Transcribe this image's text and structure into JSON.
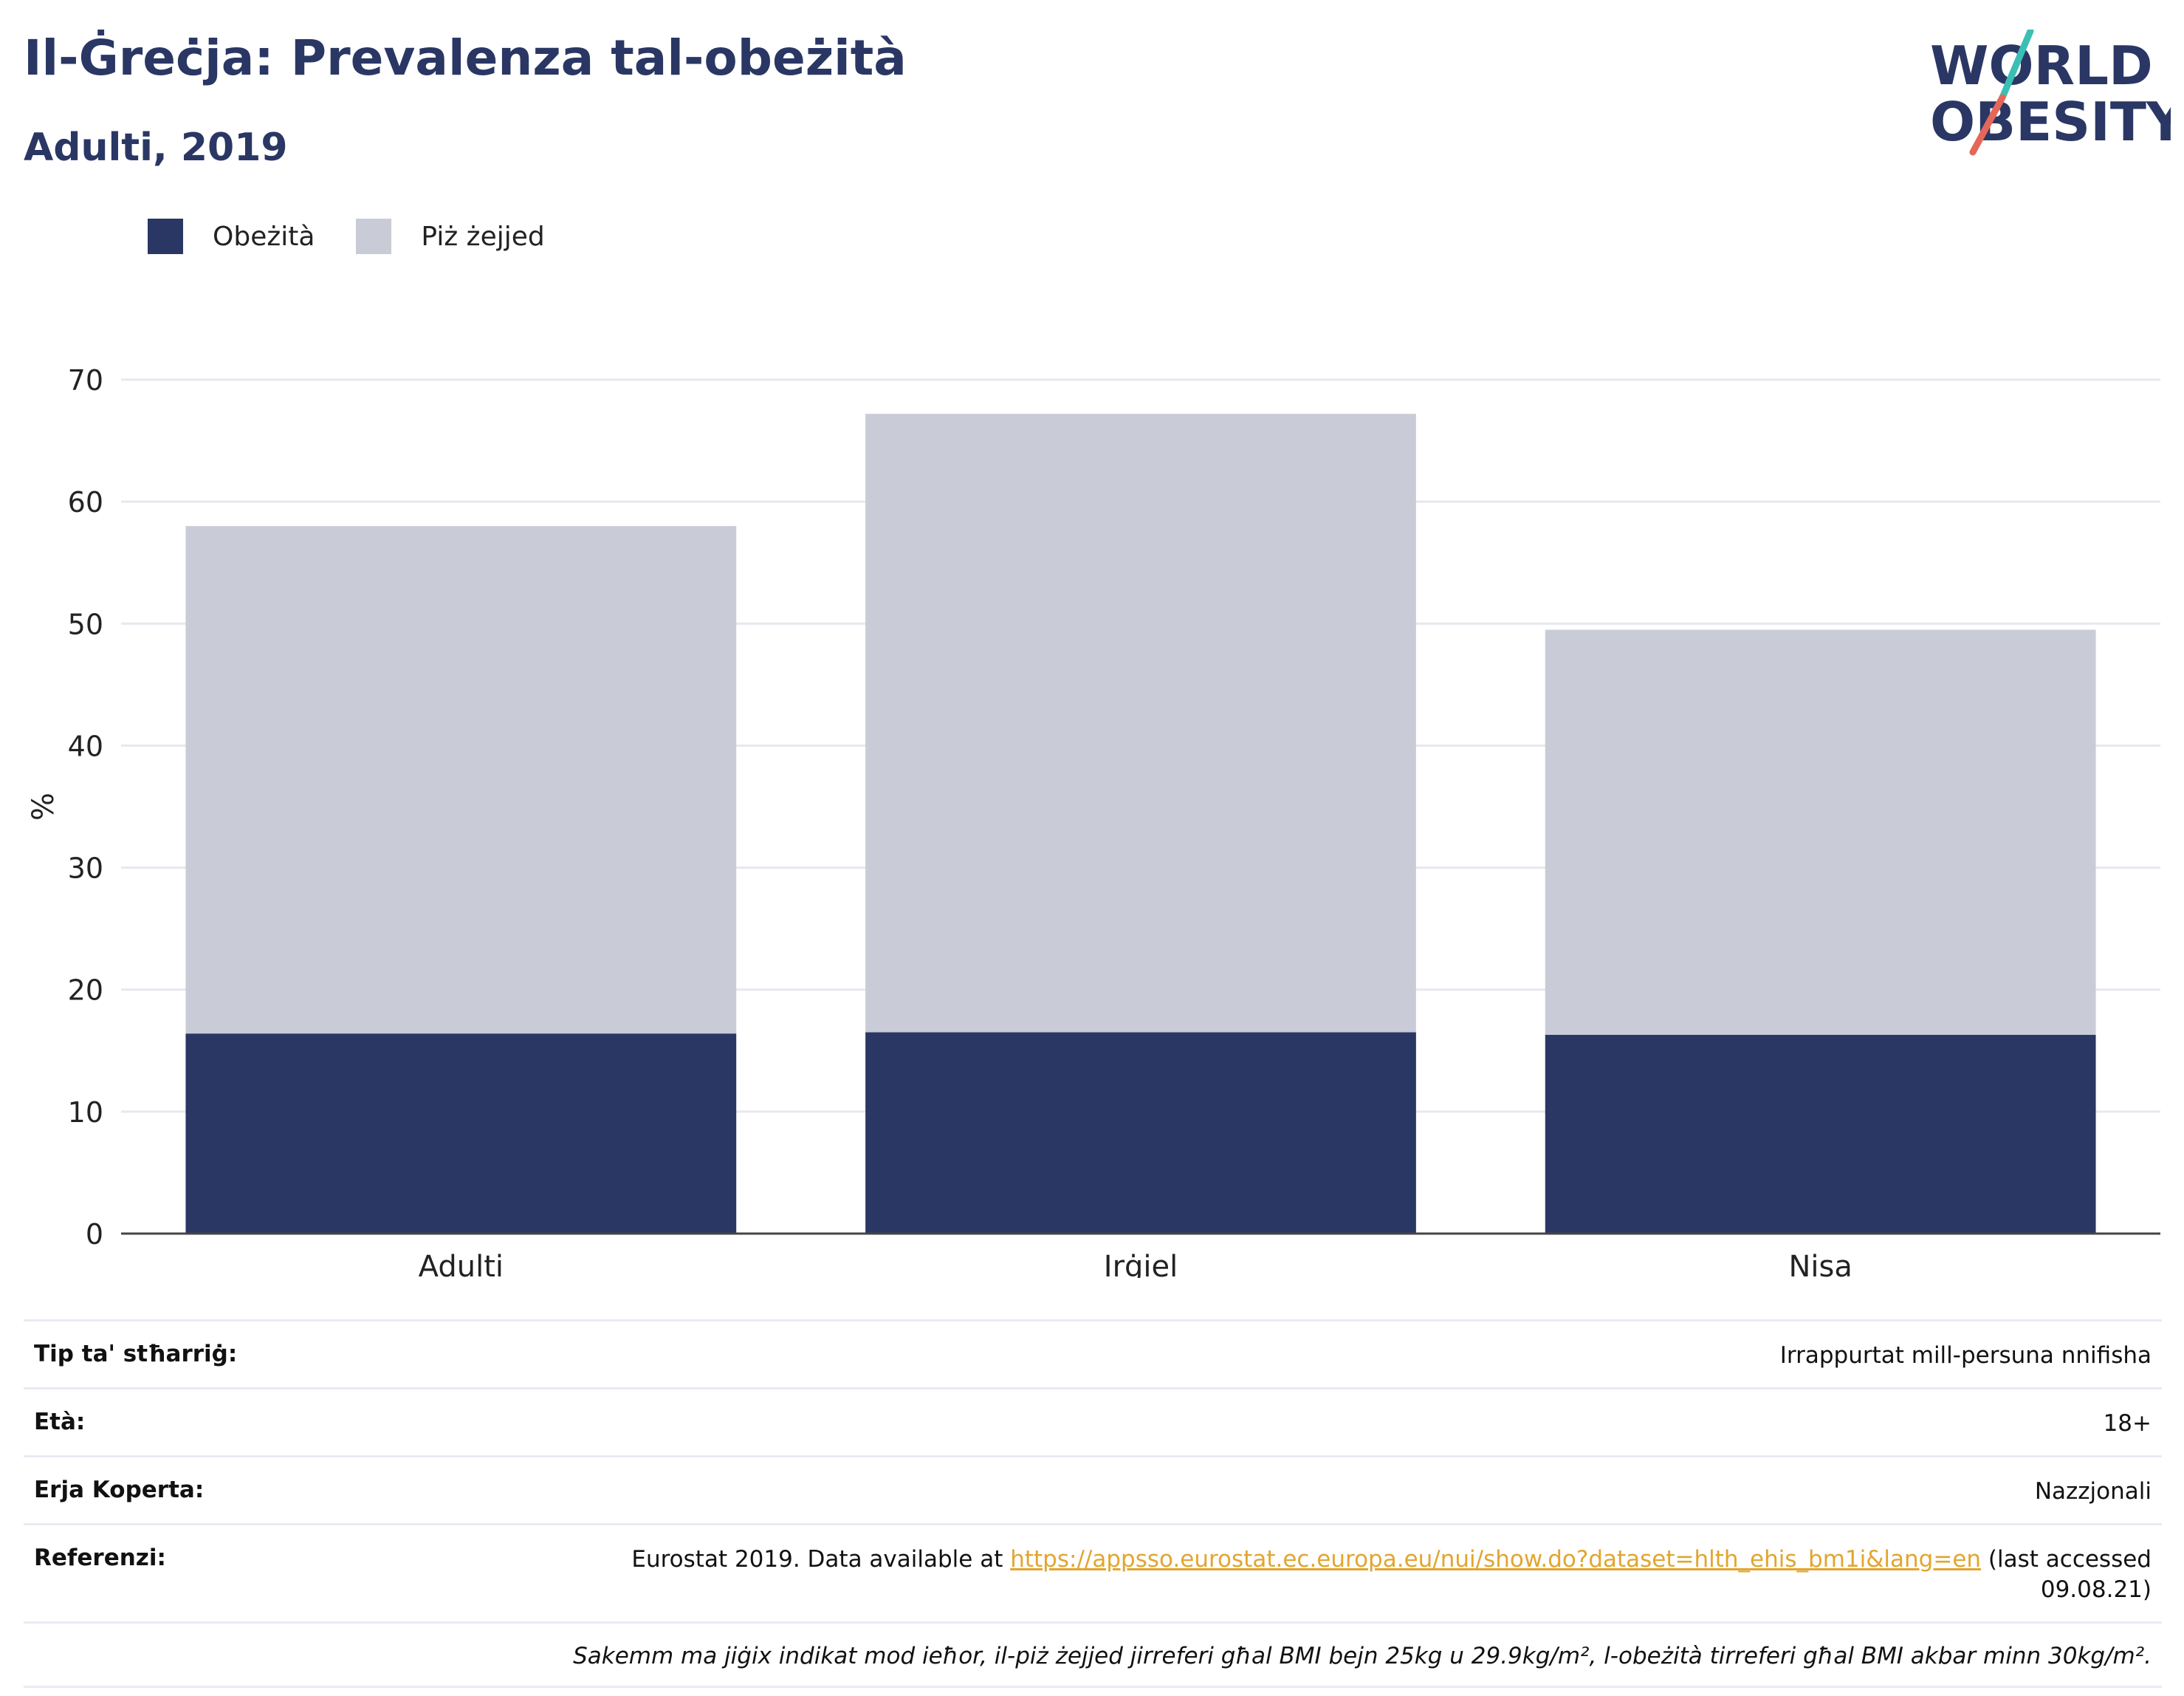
{
  "header": {
    "title": "Il-Ġreċja: Prevalenza tal-obeżità",
    "subtitle": "Adulti, 2019"
  },
  "logo": {
    "line1": "WORLD",
    "line2": "OBESITY",
    "colors": {
      "text": "#2a3764",
      "slash_top": "#3bbfb4",
      "slash_bottom": "#e4675a"
    }
  },
  "legend": [
    {
      "label": "Obeżità",
      "color": "#2a3764"
    },
    {
      "label": "Piż żejjed",
      "color": "#c9cbd6"
    }
  ],
  "chart_data": {
    "type": "bar",
    "stacked": true,
    "categories": [
      "Adulti",
      "Irġiel",
      "Nisa"
    ],
    "series": [
      {
        "name": "Obeżità",
        "color": "#2a3764",
        "values": [
          16.4,
          16.5,
          16.3
        ]
      },
      {
        "name": "Piż żejjed",
        "color": "#c9cbd6",
        "values": [
          41.6,
          50.7,
          33.2
        ]
      }
    ],
    "ylabel": "%",
    "ylim": [
      0,
      70
    ],
    "yticks": [
      0,
      10,
      20,
      30,
      40,
      50,
      60,
      70
    ],
    "grid": true,
    "legend_position": "top-left"
  },
  "info": {
    "survey_type": {
      "label": "Tip ta' stħarriġ:",
      "value": "Irrappurtat mill-persuna nnifisha"
    },
    "age": {
      "label": "Età:",
      "value": "18+"
    },
    "coverage": {
      "label": "Erja Koperta:",
      "value": "Nazzjonali"
    },
    "references": {
      "label": "Referenzi:",
      "prefix": "Eurostat 2019. Data available at ",
      "link": "https://appsso.eurostat.ec.europa.eu/nui/show.do?dataset=hlth_ehis_bm1i&lang=en",
      "suffix": " (last accessed 09.08.21)"
    },
    "note": "Sakemm ma jiġix indikat mod ieħor, il-piż żejjed jirreferi għal BMI bejn 25kg u 29.9kg/m², l-obeżità tirreferi għal BMI akbar minn 30kg/m²."
  }
}
